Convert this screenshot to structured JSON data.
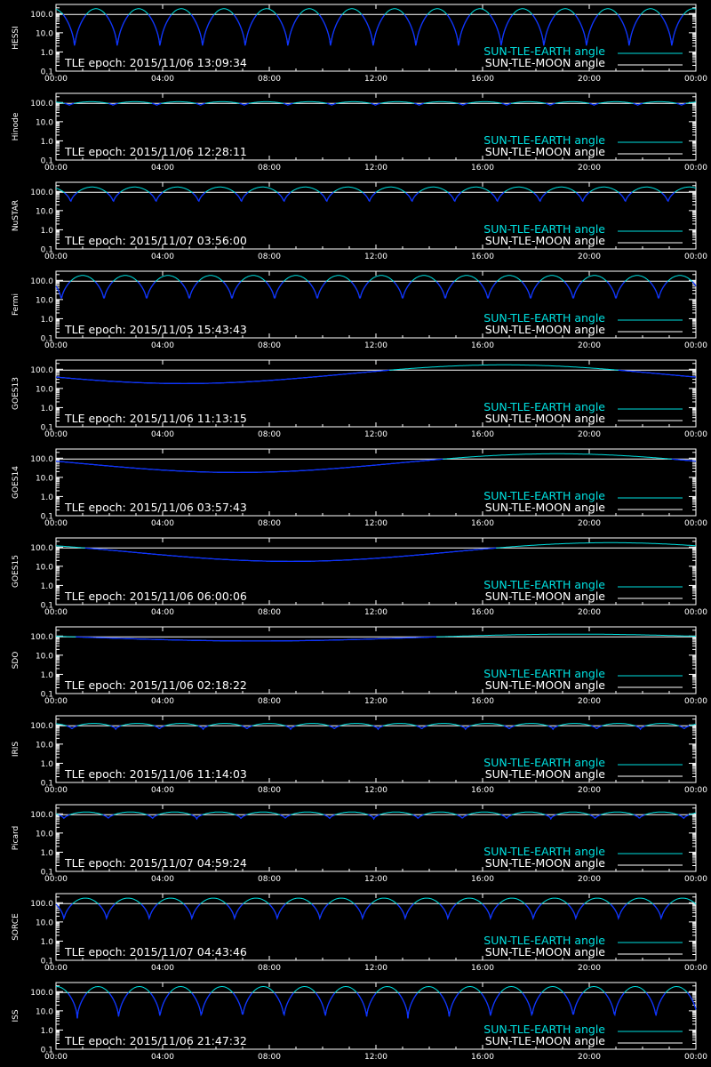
{
  "figure": {
    "background": "#000000",
    "axis_color": "#ffffff",
    "earth_color": "#00e0e0",
    "moon_color": "#ffffff",
    "dip_color": "#1030ff"
  },
  "chart_data": [
    {
      "type": "line",
      "panel": "HESSI",
      "ylabel": "HESSI",
      "epoch_text": "TLE epoch: 2015/11/06 13:09:34",
      "orbit": "leo",
      "period_h": 1.6,
      "phase_h": 0.7,
      "dip_min": 1.4,
      "peak": 180,
      "xlim": [
        "00:00",
        "24:00"
      ],
      "ylim": [
        0.1,
        300
      ],
      "yscale": "log",
      "xticks": [
        "00:00",
        "04:00",
        "08:00",
        "12:00",
        "16:00",
        "20:00",
        "00:00"
      ],
      "yticks": [
        "0.1",
        "1.0",
        "10.0",
        "100.0"
      ],
      "ref_line": 90,
      "series": [
        {
          "name": "SUN-TLE-EARTH angle",
          "color": "#00e0e0"
        },
        {
          "name": "SUN-TLE-MOON angle",
          "color": "#ffffff"
        }
      ]
    },
    {
      "type": "line",
      "panel": "Hinode",
      "ylabel": "Hinode",
      "epoch_text": "TLE epoch: 2015/11/06 12:28:11",
      "orbit": "sso",
      "period_h": 1.64,
      "phase_h": 0.5,
      "dip_min": 70,
      "peak": 110,
      "xlim": [
        "00:00",
        "24:00"
      ],
      "ylim": [
        0.1,
        300
      ],
      "yscale": "log",
      "xticks": [
        "00:00",
        "04:00",
        "08:00",
        "12:00",
        "16:00",
        "20:00",
        "00:00"
      ],
      "yticks": [
        "0.1",
        "1.0",
        "10.0",
        "100.0"
      ],
      "ref_line": 90,
      "series": [
        {
          "name": "SUN-TLE-EARTH angle",
          "color": "#00e0e0"
        },
        {
          "name": "SUN-TLE-MOON angle",
          "color": "#ffffff"
        }
      ]
    },
    {
      "type": "line",
      "panel": "NuSTAR",
      "ylabel": "NuSTAR",
      "epoch_text": "TLE epoch: 2015/11/07 03:56:00",
      "orbit": "leo",
      "period_h": 1.6,
      "phase_h": 0.55,
      "dip_min": 25,
      "peak": 170,
      "xlim": [
        "00:00",
        "24:00"
      ],
      "ylim": [
        0.1,
        300
      ],
      "yscale": "log",
      "xticks": [
        "00:00",
        "04:00",
        "08:00",
        "12:00",
        "16:00",
        "20:00",
        "00:00"
      ],
      "yticks": [
        "0.1",
        "1.0",
        "10.0",
        "100.0"
      ],
      "ref_line": 90,
      "series": [
        {
          "name": "SUN-TLE-EARTH angle",
          "color": "#00e0e0"
        },
        {
          "name": "SUN-TLE-MOON angle",
          "color": "#ffffff"
        }
      ]
    },
    {
      "type": "line",
      "panel": "Fermi",
      "ylabel": "Fermi",
      "epoch_text": "TLE epoch: 2015/11/05 15:43:43",
      "orbit": "leo",
      "period_h": 1.6,
      "phase_h": 0.2,
      "dip_min": 8,
      "peak": 180,
      "xlim": [
        "00:00",
        "24:00"
      ],
      "ylim": [
        0.1,
        300
      ],
      "yscale": "log",
      "xticks": [
        "00:00",
        "04:00",
        "08:00",
        "12:00",
        "16:00",
        "20:00",
        "00:00"
      ],
      "yticks": [
        "0.1",
        "1.0",
        "10.0",
        "100.0"
      ],
      "ref_line": 90,
      "series": [
        {
          "name": "SUN-TLE-EARTH angle",
          "color": "#00e0e0"
        },
        {
          "name": "SUN-TLE-MOON angle",
          "color": "#ffffff"
        }
      ]
    },
    {
      "type": "line",
      "panel": "GOES13",
      "ylabel": "GOES13",
      "epoch_text": "TLE epoch: 2015/11/06 11:13:15",
      "orbit": "geo",
      "min_time_h": 4.8,
      "min_val": 18,
      "max_val": 170,
      "xlim": [
        "00:00",
        "24:00"
      ],
      "ylim": [
        0.1,
        300
      ],
      "yscale": "log",
      "xticks": [
        "00:00",
        "04:00",
        "08:00",
        "12:00",
        "16:00",
        "20:00",
        "00:00"
      ],
      "yticks": [
        "0.1",
        "1.0",
        "10.0",
        "100.0"
      ],
      "ref_line": 90,
      "series": [
        {
          "name": "SUN-TLE-EARTH angle",
          "color": "#00e0e0"
        },
        {
          "name": "SUN-TLE-MOON angle",
          "color": "#ffffff"
        }
      ]
    },
    {
      "type": "line",
      "panel": "GOES14",
      "ylabel": "GOES14",
      "epoch_text": "TLE epoch: 2015/11/06 03:57:43",
      "orbit": "geo",
      "min_time_h": 6.8,
      "min_val": 18,
      "max_val": 170,
      "xlim": [
        "00:00",
        "24:00"
      ],
      "ylim": [
        0.1,
        300
      ],
      "yscale": "log",
      "xticks": [
        "00:00",
        "04:00",
        "08:00",
        "12:00",
        "16:00",
        "20:00",
        "00:00"
      ],
      "yticks": [
        "0.1",
        "1.0",
        "10.0",
        "100.0"
      ],
      "ref_line": 90,
      "series": [
        {
          "name": "SUN-TLE-EARTH angle",
          "color": "#00e0e0"
        },
        {
          "name": "SUN-TLE-MOON angle",
          "color": "#ffffff"
        }
      ]
    },
    {
      "type": "line",
      "panel": "GOES15",
      "ylabel": "GOES15",
      "epoch_text": "TLE epoch: 2015/11/06 06:00:06",
      "orbit": "geo",
      "min_time_h": 8.8,
      "min_val": 18,
      "max_val": 170,
      "xlim": [
        "00:00",
        "24:00"
      ],
      "ylim": [
        0.1,
        300
      ],
      "yscale": "log",
      "xticks": [
        "00:00",
        "04:00",
        "08:00",
        "12:00",
        "16:00",
        "20:00",
        "00:00"
      ],
      "yticks": [
        "0.1",
        "1.0",
        "10.0",
        "100.0"
      ],
      "ref_line": 90,
      "series": [
        {
          "name": "SUN-TLE-EARTH angle",
          "color": "#00e0e0"
        },
        {
          "name": "SUN-TLE-MOON angle",
          "color": "#ffffff"
        }
      ]
    },
    {
      "type": "line",
      "panel": "SDO",
      "ylabel": "SDO",
      "epoch_text": "TLE epoch: 2015/11/06 02:18:22",
      "orbit": "geo",
      "min_time_h": 7.5,
      "min_val": 55,
      "max_val": 125,
      "xlim": [
        "00:00",
        "24:00"
      ],
      "ylim": [
        0.1,
        300
      ],
      "yscale": "log",
      "xticks": [
        "00:00",
        "04:00",
        "08:00",
        "12:00",
        "16:00",
        "20:00",
        "00:00"
      ],
      "yticks": [
        "0.1",
        "1.0",
        "10.0",
        "100.0"
      ],
      "ref_line": 90,
      "series": [
        {
          "name": "SUN-TLE-EARTH angle",
          "color": "#00e0e0"
        },
        {
          "name": "SUN-TLE-MOON angle",
          "color": "#ffffff"
        }
      ]
    },
    {
      "type": "line",
      "panel": "IRIS",
      "ylabel": "IRIS",
      "epoch_text": "TLE epoch: 2015/11/06 11:14:03",
      "orbit": "sso",
      "period_h": 1.64,
      "phase_h": 0.6,
      "dip_min": 60,
      "peak": 120,
      "xlim": [
        "00:00",
        "24:00"
      ],
      "ylim": [
        0.1,
        300
      ],
      "yscale": "log",
      "xticks": [
        "00:00",
        "04:00",
        "08:00",
        "12:00",
        "16:00",
        "20:00",
        "00:00"
      ],
      "yticks": [
        "0.1",
        "1.0",
        "10.0",
        "100.0"
      ],
      "ref_line": 90,
      "series": [
        {
          "name": "SUN-TLE-EARTH angle",
          "color": "#00e0e0"
        },
        {
          "name": "SUN-TLE-MOON angle",
          "color": "#ffffff"
        }
      ]
    },
    {
      "type": "line",
      "panel": "Picard",
      "ylabel": "Picard",
      "epoch_text": "TLE epoch: 2015/11/07 04:59:24",
      "orbit": "sso",
      "period_h": 1.66,
      "phase_h": 0.3,
      "dip_min": 55,
      "peak": 125,
      "xlim": [
        "00:00",
        "24:00"
      ],
      "ylim": [
        0.1,
        300
      ],
      "yscale": "log",
      "xticks": [
        "00:00",
        "04:00",
        "08:00",
        "12:00",
        "16:00",
        "20:00",
        "00:00"
      ],
      "yticks": [
        "0.1",
        "1.0",
        "10.0",
        "100.0"
      ],
      "ref_line": 90,
      "series": [
        {
          "name": "SUN-TLE-EARTH angle",
          "color": "#00e0e0"
        },
        {
          "name": "SUN-TLE-MOON angle",
          "color": "#ffffff"
        }
      ]
    },
    {
      "type": "line",
      "panel": "SORCE",
      "ylabel": "SORCE",
      "epoch_text": "TLE epoch: 2015/11/07 04:43:46",
      "orbit": "leo",
      "period_h": 1.6,
      "phase_h": 0.3,
      "dip_min": 12,
      "peak": 175,
      "xlim": [
        "00:00",
        "24:00"
      ],
      "ylim": [
        0.1,
        300
      ],
      "yscale": "log",
      "xticks": [
        "00:00",
        "04:00",
        "08:00",
        "12:00",
        "16:00",
        "20:00",
        "00:00"
      ],
      "yticks": [
        "0.1",
        "1.0",
        "10.0",
        "100.0"
      ],
      "ref_line": 90,
      "series": [
        {
          "name": "SUN-TLE-EARTH angle",
          "color": "#00e0e0"
        },
        {
          "name": "SUN-TLE-MOON angle",
          "color": "#ffffff"
        }
      ]
    },
    {
      "type": "line",
      "panel": "ISS",
      "ylabel": "ISS",
      "epoch_text": "TLE epoch: 2015/11/06 21:47:32",
      "orbit": "leo",
      "period_h": 1.55,
      "phase_h": 0.8,
      "dip_min": 4,
      "peak": 185,
      "xlim": [
        "00:00",
        "24:00"
      ],
      "ylim": [
        0.1,
        300
      ],
      "yscale": "log",
      "xticks": [
        "00:00",
        "04:00",
        "08:00",
        "12:00",
        "16:00",
        "20:00",
        "00:00"
      ],
      "yticks": [
        "0.1",
        "1.0",
        "10.0",
        "100.0"
      ],
      "ref_line": 90,
      "series": [
        {
          "name": "SUN-TLE-EARTH angle",
          "color": "#00e0e0"
        },
        {
          "name": "SUN-TLE-MOON angle",
          "color": "#ffffff"
        }
      ]
    }
  ]
}
